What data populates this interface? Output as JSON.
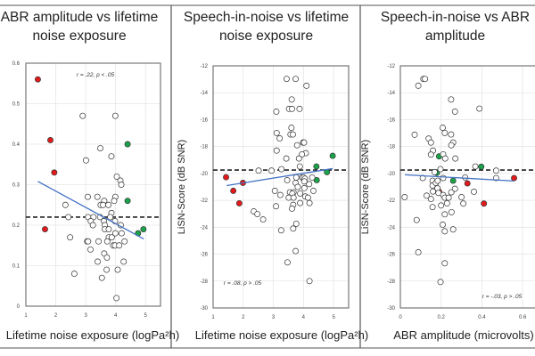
{
  "panels": [
    {
      "title_line1": "ABR amplitude vs lifetime",
      "title_line2": "noise exposure"
    },
    {
      "title_line1": "Speech-in-noise vs lifetime",
      "title_line2": "noise exposure"
    },
    {
      "title_line1": "Speech-in-noise vs ABR",
      "title_line2": "amplitude"
    }
  ],
  "chart_data": [
    {
      "type": "scatter",
      "title": "ABR amplitude vs lifetime noise exposure",
      "xlabel": "Lifetime noise exposure (logPa²h)",
      "ylabel": "",
      "xlim": [
        1,
        5.5
      ],
      "ylim": [
        0,
        0.6
      ],
      "xticks": [
        "1",
        "2",
        "3",
        "4",
        "5"
      ],
      "xtick_values": [
        1,
        2,
        3,
        4,
        5
      ],
      "yticks": [
        "0",
        "0.1",
        "0.2",
        "0.3",
        "0.4",
        "0.5",
        "0.6"
      ],
      "ytick_values": [
        0,
        0.1,
        0.2,
        0.3,
        0.4,
        0.5,
        0.6
      ],
      "grid": true,
      "annotation": "r = .22, p < .05",
      "reference_line_y": 0.22,
      "trendline": [
        [
          1.4,
          0.308
        ],
        [
          4.94,
          0.166
        ]
      ],
      "colors": {
        "red": "#e31a1c",
        "green": "#1aa34a",
        "open": "#ffffff",
        "trend": "#4472c4"
      },
      "groups": [
        {
          "color": "red",
          "points": [
            [
              1.4,
              0.56
            ],
            [
              1.82,
              0.41
            ],
            [
              1.95,
              0.33
            ],
            [
              1.64,
              0.19
            ]
          ]
        },
        {
          "color": "green",
          "points": [
            [
              4.4,
              0.4
            ],
            [
              4.4,
              0.26
            ],
            [
              4.75,
              0.18
            ],
            [
              4.93,
              0.19
            ]
          ]
        },
        {
          "color": "open",
          "points": [
            [
              2.9,
              0.47
            ],
            [
              3.99,
              0.47
            ],
            [
              3.49,
              0.39
            ],
            [
              3.86,
              0.37
            ],
            [
              3.01,
              0.36
            ],
            [
              4.04,
              0.32
            ],
            [
              4.16,
              0.31
            ],
            [
              4.19,
              0.3
            ],
            [
              2.32,
              0.25
            ],
            [
              3.07,
              0.27
            ],
            [
              3.39,
              0.27
            ],
            [
              3.99,
              0.27
            ],
            [
              3.62,
              0.26
            ],
            [
              3.95,
              0.26
            ],
            [
              3.5,
              0.25
            ],
            [
              3.58,
              0.25
            ],
            [
              3.76,
              0.25
            ],
            [
              3.86,
              0.23
            ],
            [
              2.42,
              0.22
            ],
            [
              3.08,
              0.22
            ],
            [
              3.26,
              0.22
            ],
            [
              3.48,
              0.22
            ],
            [
              3.82,
              0.22
            ],
            [
              3.17,
              0.21
            ],
            [
              3.61,
              0.21
            ],
            [
              3.98,
              0.21
            ],
            [
              3.24,
              0.2
            ],
            [
              3.64,
              0.2
            ],
            [
              4.17,
              0.2
            ],
            [
              3.64,
              0.19
            ],
            [
              3.77,
              0.19
            ],
            [
              3.77,
              0.17
            ],
            [
              3.87,
              0.17
            ],
            [
              2.48,
              0.17
            ],
            [
              4.2,
              0.18
            ],
            [
              3.99,
              0.18
            ],
            [
              3.05,
              0.16
            ],
            [
              3.08,
              0.16
            ],
            [
              3.43,
              0.16
            ],
            [
              3.72,
              0.16
            ],
            [
              4.3,
              0.16
            ],
            [
              3.92,
              0.15
            ],
            [
              3.98,
              0.15
            ],
            [
              4.12,
              0.15
            ],
            [
              3.16,
              0.14
            ],
            [
              3.62,
              0.13
            ],
            [
              3.71,
              0.12
            ],
            [
              3.4,
              0.11
            ],
            [
              4.27,
              0.11
            ],
            [
              2.62,
              0.08
            ],
            [
              3.7,
              0.09
            ],
            [
              4.07,
              0.09
            ],
            [
              3.54,
              0.07
            ],
            [
              4.03,
              0.02
            ]
          ]
        }
      ]
    },
    {
      "type": "scatter",
      "title": "Speech-in-noise vs lifetime noise exposure",
      "xlabel": "Lifetime noise exposure (logPa²h)",
      "ylabel": "LiSN-Score (dB SNR)",
      "xlim": [
        1,
        5.5
      ],
      "ylim": [
        -30,
        -12
      ],
      "xticks": [
        "1",
        "2",
        "3",
        "4",
        "5"
      ],
      "xtick_values": [
        1,
        2,
        3,
        4,
        5
      ],
      "yticks": [
        "-30",
        "-28",
        "-26",
        "-24",
        "-22",
        "-20",
        "-18",
        "-16",
        "-14",
        "-12"
      ],
      "ytick_values": [
        -30,
        -28,
        -26,
        -24,
        -22,
        -20,
        -18,
        -16,
        -14,
        -12
      ],
      "grid": true,
      "annotation": "r = .08, p > .05",
      "reference_line_y": -19.75,
      "trendline": [
        [
          1.45,
          -20.9
        ],
        [
          4.97,
          -19.64
        ]
      ],
      "colors": {
        "red": "#e31a1c",
        "green": "#1aa34a",
        "open": "#ffffff",
        "trend": "#4472c4"
      },
      "groups": [
        {
          "color": "red",
          "points": [
            [
              1.43,
              -20.28
            ],
            [
              1.67,
              -21.29
            ],
            [
              1.87,
              -22.22
            ],
            [
              1.99,
              -20.7
            ]
          ]
        },
        {
          "color": "green",
          "points": [
            [
              4.43,
              -19.48
            ],
            [
              4.44,
              -20.5
            ],
            [
              4.78,
              -19.9
            ],
            [
              4.97,
              -18.69
            ]
          ]
        },
        {
          "color": "open",
          "points": [
            [
              3.44,
              -12.97
            ],
            [
              3.74,
              -12.97
            ],
            [
              4.1,
              -13.48
            ],
            [
              3.61,
              -14.5
            ],
            [
              3.52,
              -15.2
            ],
            [
              3.62,
              -15.2
            ],
            [
              3.87,
              -15.2
            ],
            [
              3.1,
              -15.4
            ],
            [
              3.6,
              -16.6
            ],
            [
              3.11,
              -16.99
            ],
            [
              3.57,
              -17.1
            ],
            [
              3.65,
              -17.1
            ],
            [
              3.21,
              -17.39
            ],
            [
              3.99,
              -17.7
            ],
            [
              4.02,
              -17.7
            ],
            [
              3.11,
              -18.3
            ],
            [
              3.79,
              -17.9
            ],
            [
              4.08,
              -18.49
            ],
            [
              3.95,
              -18.58
            ],
            [
              3.43,
              -18.89
            ],
            [
              3.85,
              -18.89
            ],
            [
              3.88,
              -19.48
            ],
            [
              2.51,
              -19.79
            ],
            [
              2.94,
              -19.79
            ],
            [
              3.27,
              -19.68
            ],
            [
              3.46,
              -20.5
            ],
            [
              3.76,
              -20.3
            ],
            [
              3.95,
              -20.3
            ],
            [
              4.0,
              -20.3
            ],
            [
              4.05,
              -20.39
            ],
            [
              4.29,
              -20.3
            ],
            [
              3.74,
              -20.7
            ],
            [
              4.03,
              -20.59
            ],
            [
              4.19,
              -20.79
            ],
            [
              3.81,
              -21.0
            ],
            [
              4.03,
              -21.09
            ],
            [
              3.05,
              -21.29
            ],
            [
              3.23,
              -21.6
            ],
            [
              3.55,
              -21.4
            ],
            [
              3.67,
              -21.4
            ],
            [
              3.63,
              -21.5
            ],
            [
              3.89,
              -21.49
            ],
            [
              4.33,
              -21.29
            ],
            [
              3.51,
              -21.8
            ],
            [
              3.67,
              -21.8
            ],
            [
              4.06,
              -21.71
            ],
            [
              4.15,
              -21.8
            ],
            [
              3.89,
              -22.2
            ],
            [
              4.2,
              -22.2
            ],
            [
              3.66,
              -22.33
            ],
            [
              3.09,
              -22.44
            ],
            [
              3.62,
              -22.62
            ],
            [
              2.35,
              -22.82
            ],
            [
              2.47,
              -23.02
            ],
            [
              2.66,
              -23.42
            ],
            [
              3.76,
              -23.74
            ],
            [
              3.66,
              -24.1
            ],
            [
              3.26,
              -24.23
            ],
            [
              3.74,
              -25.77
            ],
            [
              3.47,
              -26.61
            ],
            [
              4.2,
              -28.0
            ]
          ]
        }
      ]
    },
    {
      "type": "scatter",
      "title": "Speech-in-noise vs ABR amplitude",
      "xlabel": "ABR amplitude (microvolts)",
      "ylabel": "LiSN-Score (dB SNR)",
      "xlim": [
        0,
        0.7
      ],
      "ylim": [
        -30,
        -12
      ],
      "xticks": [
        "0",
        "0.2",
        "0.4",
        "0.6"
      ],
      "xtick_values": [
        0,
        0.2,
        0.4,
        0.6
      ],
      "yticks": [
        "-30",
        "-28",
        "-26",
        "-24",
        "-22",
        "-20",
        "-18",
        "-16",
        "-14",
        "-12"
      ],
      "ytick_values": [
        -30,
        -28,
        -26,
        -24,
        -22,
        -20,
        -18,
        -16,
        -14,
        -12
      ],
      "grid": true,
      "annotation": "r = -.03, p > .05",
      "reference_line_y": -19.75,
      "trendline": [
        [
          0.022,
          -20.1
        ],
        [
          0.558,
          -20.56
        ]
      ],
      "colors": {
        "red": "#e31a1c",
        "green": "#1aa34a",
        "open": "#ffffff",
        "trend": "#4472c4"
      },
      "groups": [
        {
          "color": "red",
          "points": [
            [
              0.19,
              -21.36
            ],
            [
              0.329,
              -20.74
            ],
            [
              0.41,
              -22.24
            ],
            [
              0.558,
              -20.34
            ]
          ]
        },
        {
          "color": "green",
          "points": [
            [
              0.19,
              -18.73
            ],
            [
              0.179,
              -19.95
            ],
            [
              0.259,
              -20.54
            ],
            [
              0.397,
              -19.5
            ]
          ]
        },
        {
          "color": "open",
          "points": [
            [
              0.021,
              -21.76
            ],
            [
              0.08,
              -23.46
            ],
            [
              0.088,
              -25.86
            ],
            [
              0.088,
              -13.48
            ],
            [
              0.113,
              -12.97
            ],
            [
              0.121,
              -12.97
            ],
            [
              0.07,
              -17.12
            ],
            [
              0.11,
              -20.34
            ],
            [
              0.129,
              -21.65
            ],
            [
              0.139,
              -17.41
            ],
            [
              0.15,
              -17.7
            ],
            [
              0.16,
              -18.3
            ],
            [
              0.15,
              -18.6
            ],
            [
              0.15,
              -21.9
            ],
            [
              0.158,
              -22.5
            ],
            [
              0.158,
              -20.54
            ],
            [
              0.158,
              -20.9
            ],
            [
              0.16,
              -21.34
            ],
            [
              0.168,
              -19.9
            ],
            [
              0.174,
              -20.7
            ],
            [
              0.183,
              -20.54
            ],
            [
              0.182,
              -21.1
            ],
            [
              0.187,
              -21.45
            ],
            [
              0.197,
              -19.68
            ],
            [
              0.2,
              -22.38
            ],
            [
              0.208,
              -16.6
            ],
            [
              0.21,
              -18.58
            ],
            [
              0.21,
              -20.34
            ],
            [
              0.21,
              -21.6
            ],
            [
              0.218,
              -16.99
            ],
            [
              0.22,
              -18.89
            ],
            [
              0.218,
              -21.8
            ],
            [
              0.218,
              -23.04
            ],
            [
              0.208,
              -23.81
            ],
            [
              0.218,
              -24.3
            ],
            [
              0.218,
              -26.68
            ],
            [
              0.197,
              -28.07
            ],
            [
              0.229,
              -22.22
            ],
            [
              0.237,
              -21.8
            ],
            [
              0.249,
              -14.5
            ],
            [
              0.268,
              -15.4
            ],
            [
              0.249,
              -17.1
            ],
            [
              0.259,
              -17.7
            ],
            [
              0.25,
              -17.9
            ],
            [
              0.27,
              -18.89
            ],
            [
              0.25,
              -21.4
            ],
            [
              0.268,
              -21.14
            ],
            [
              0.251,
              -22.88
            ],
            [
              0.259,
              -24.16
            ],
            [
              0.3,
              -21.76
            ],
            [
              0.309,
              -22.24
            ],
            [
              0.318,
              -20.3
            ],
            [
              0.361,
              -21.36
            ],
            [
              0.368,
              -19.48
            ],
            [
              0.388,
              -15.18
            ],
            [
              0.47,
              -19.79
            ],
            [
              0.47,
              -20.34
            ]
          ]
        }
      ]
    }
  ]
}
